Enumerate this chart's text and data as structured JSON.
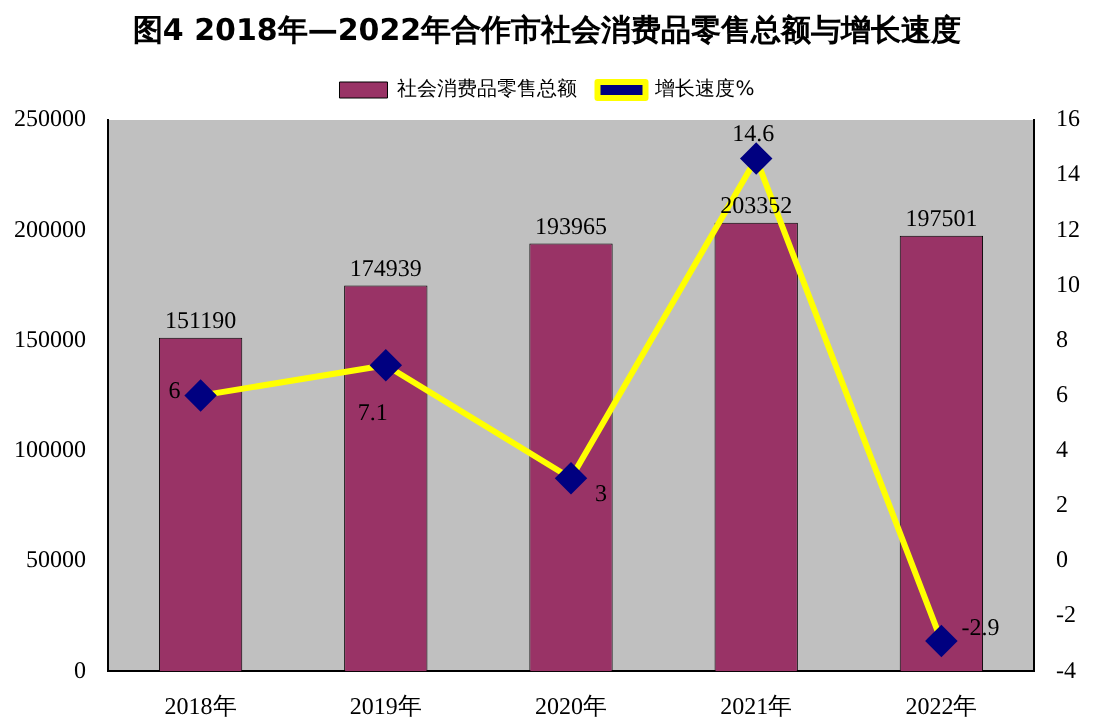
{
  "chart_data": {
    "type": "bar",
    "title": "图4 2018年—2022年合作市社会消费品零售总额与增长速度",
    "categories": [
      "2018年",
      "2019年",
      "2020年",
      "2021年",
      "2022年"
    ],
    "series": [
      {
        "name": "社会消费品零售总额",
        "color": "#993366",
        "values": [
          151190,
          174939,
          193965,
          203352,
          197501
        ]
      },
      {
        "name": "增长速度%",
        "type": "line",
        "axis": "y2",
        "color": "#ffff00",
        "colors": [
          "#000080",
          "#000080",
          "#000080",
          "#000080",
          "#000080"
        ],
        "values": [
          6,
          7.1,
          3,
          14.6,
          -2.9
        ]
      }
    ],
    "ylim": [
      0,
      250000
    ],
    "yticks": [
      0,
      50000,
      100000,
      150000,
      200000,
      250000
    ],
    "y2lim": [
      -4,
      16
    ],
    "y2ticks": [
      -4,
      -2,
      0,
      2,
      4,
      6,
      8,
      10,
      12,
      14,
      16
    ],
    "data_labels": true,
    "legend": "top",
    "marker": "diamond",
    "line_style": "solid",
    "grid": false
  }
}
